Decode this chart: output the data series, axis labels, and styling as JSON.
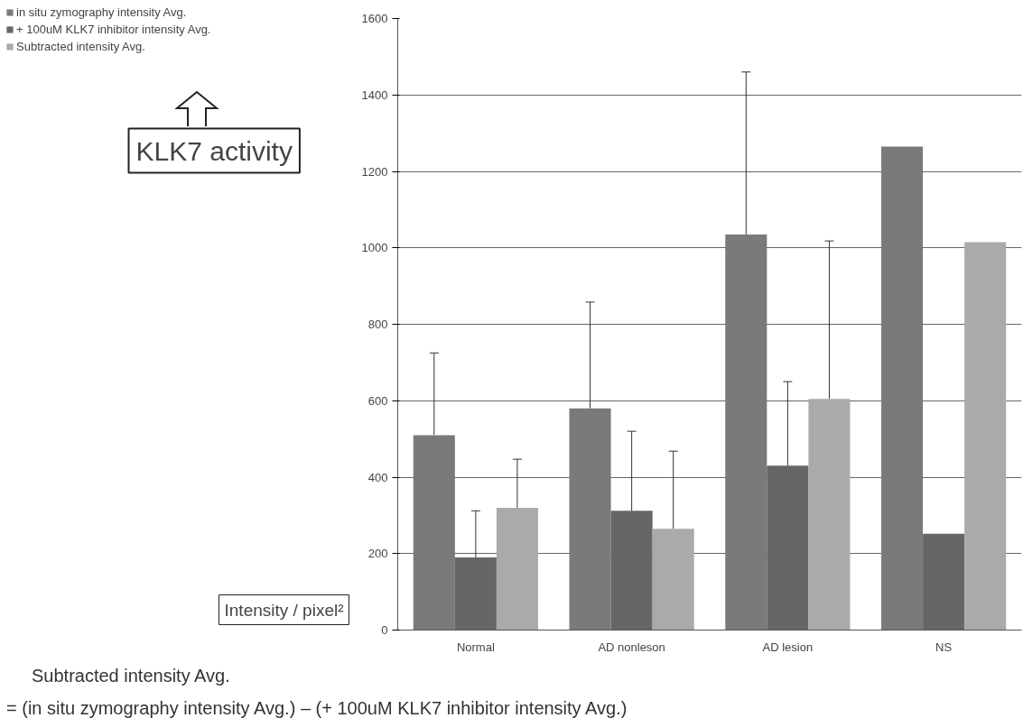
{
  "chart_data": {
    "type": "bar",
    "ylabel": "Intensity / pixel²",
    "categories": [
      "Normal",
      "AD nonleson",
      "AD lesion",
      "NS"
    ],
    "series": [
      {
        "name": "in situ zymography intensity Avg.",
        "color": "#7a7a7a",
        "values": [
          510,
          580,
          1035,
          1265
        ],
        "errors": [
          [
            510,
            725
          ],
          [
            580,
            858
          ],
          [
            1035,
            1460
          ],
          null
        ]
      },
      {
        "name": "+ 100uM KLK7 inhibitor intensity Avg.",
        "color": "#666666",
        "values": [
          190,
          312,
          430,
          252
        ],
        "errors": [
          [
            190,
            312
          ],
          [
            312,
            520
          ],
          [
            430,
            650
          ],
          null
        ]
      },
      {
        "name": "Subtracted intensity Avg.",
        "color": "#aaaaaa",
        "values": [
          320,
          265,
          605,
          1015
        ],
        "errors": [
          [
            320,
            447
          ],
          [
            265,
            468
          ],
          [
            605,
            1018
          ],
          null
        ]
      }
    ],
    "ylim": [
      0,
      1600
    ],
    "yticks": [
      0,
      200,
      400,
      600,
      800,
      1000,
      1200,
      1400,
      1600
    ],
    "grid": "y",
    "legend": "top left",
    "annotations": [
      "KLK7 activity",
      "Subtracted intensity Avg.",
      "= (in situ zymography intensity Avg.) – (+ 100uM KLK7 inhibitor intensity Avg.)"
    ]
  }
}
